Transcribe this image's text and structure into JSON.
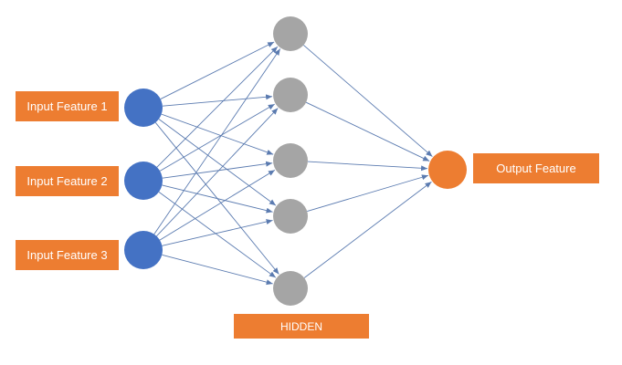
{
  "colors": {
    "input_node": "#4472C4",
    "hidden_node": "#A5A5A5",
    "output_node": "#ED7D31",
    "label_fill": "#ED7D31",
    "edge": "#5B7BB0"
  },
  "labels": {
    "inputs": [
      "Input Feature 1",
      "Input Feature 2",
      "Input Feature 3"
    ],
    "output": "Output Feature",
    "hidden": "HIDDEN"
  },
  "layers": {
    "input_count": 3,
    "hidden_count": 5,
    "output_count": 1
  }
}
